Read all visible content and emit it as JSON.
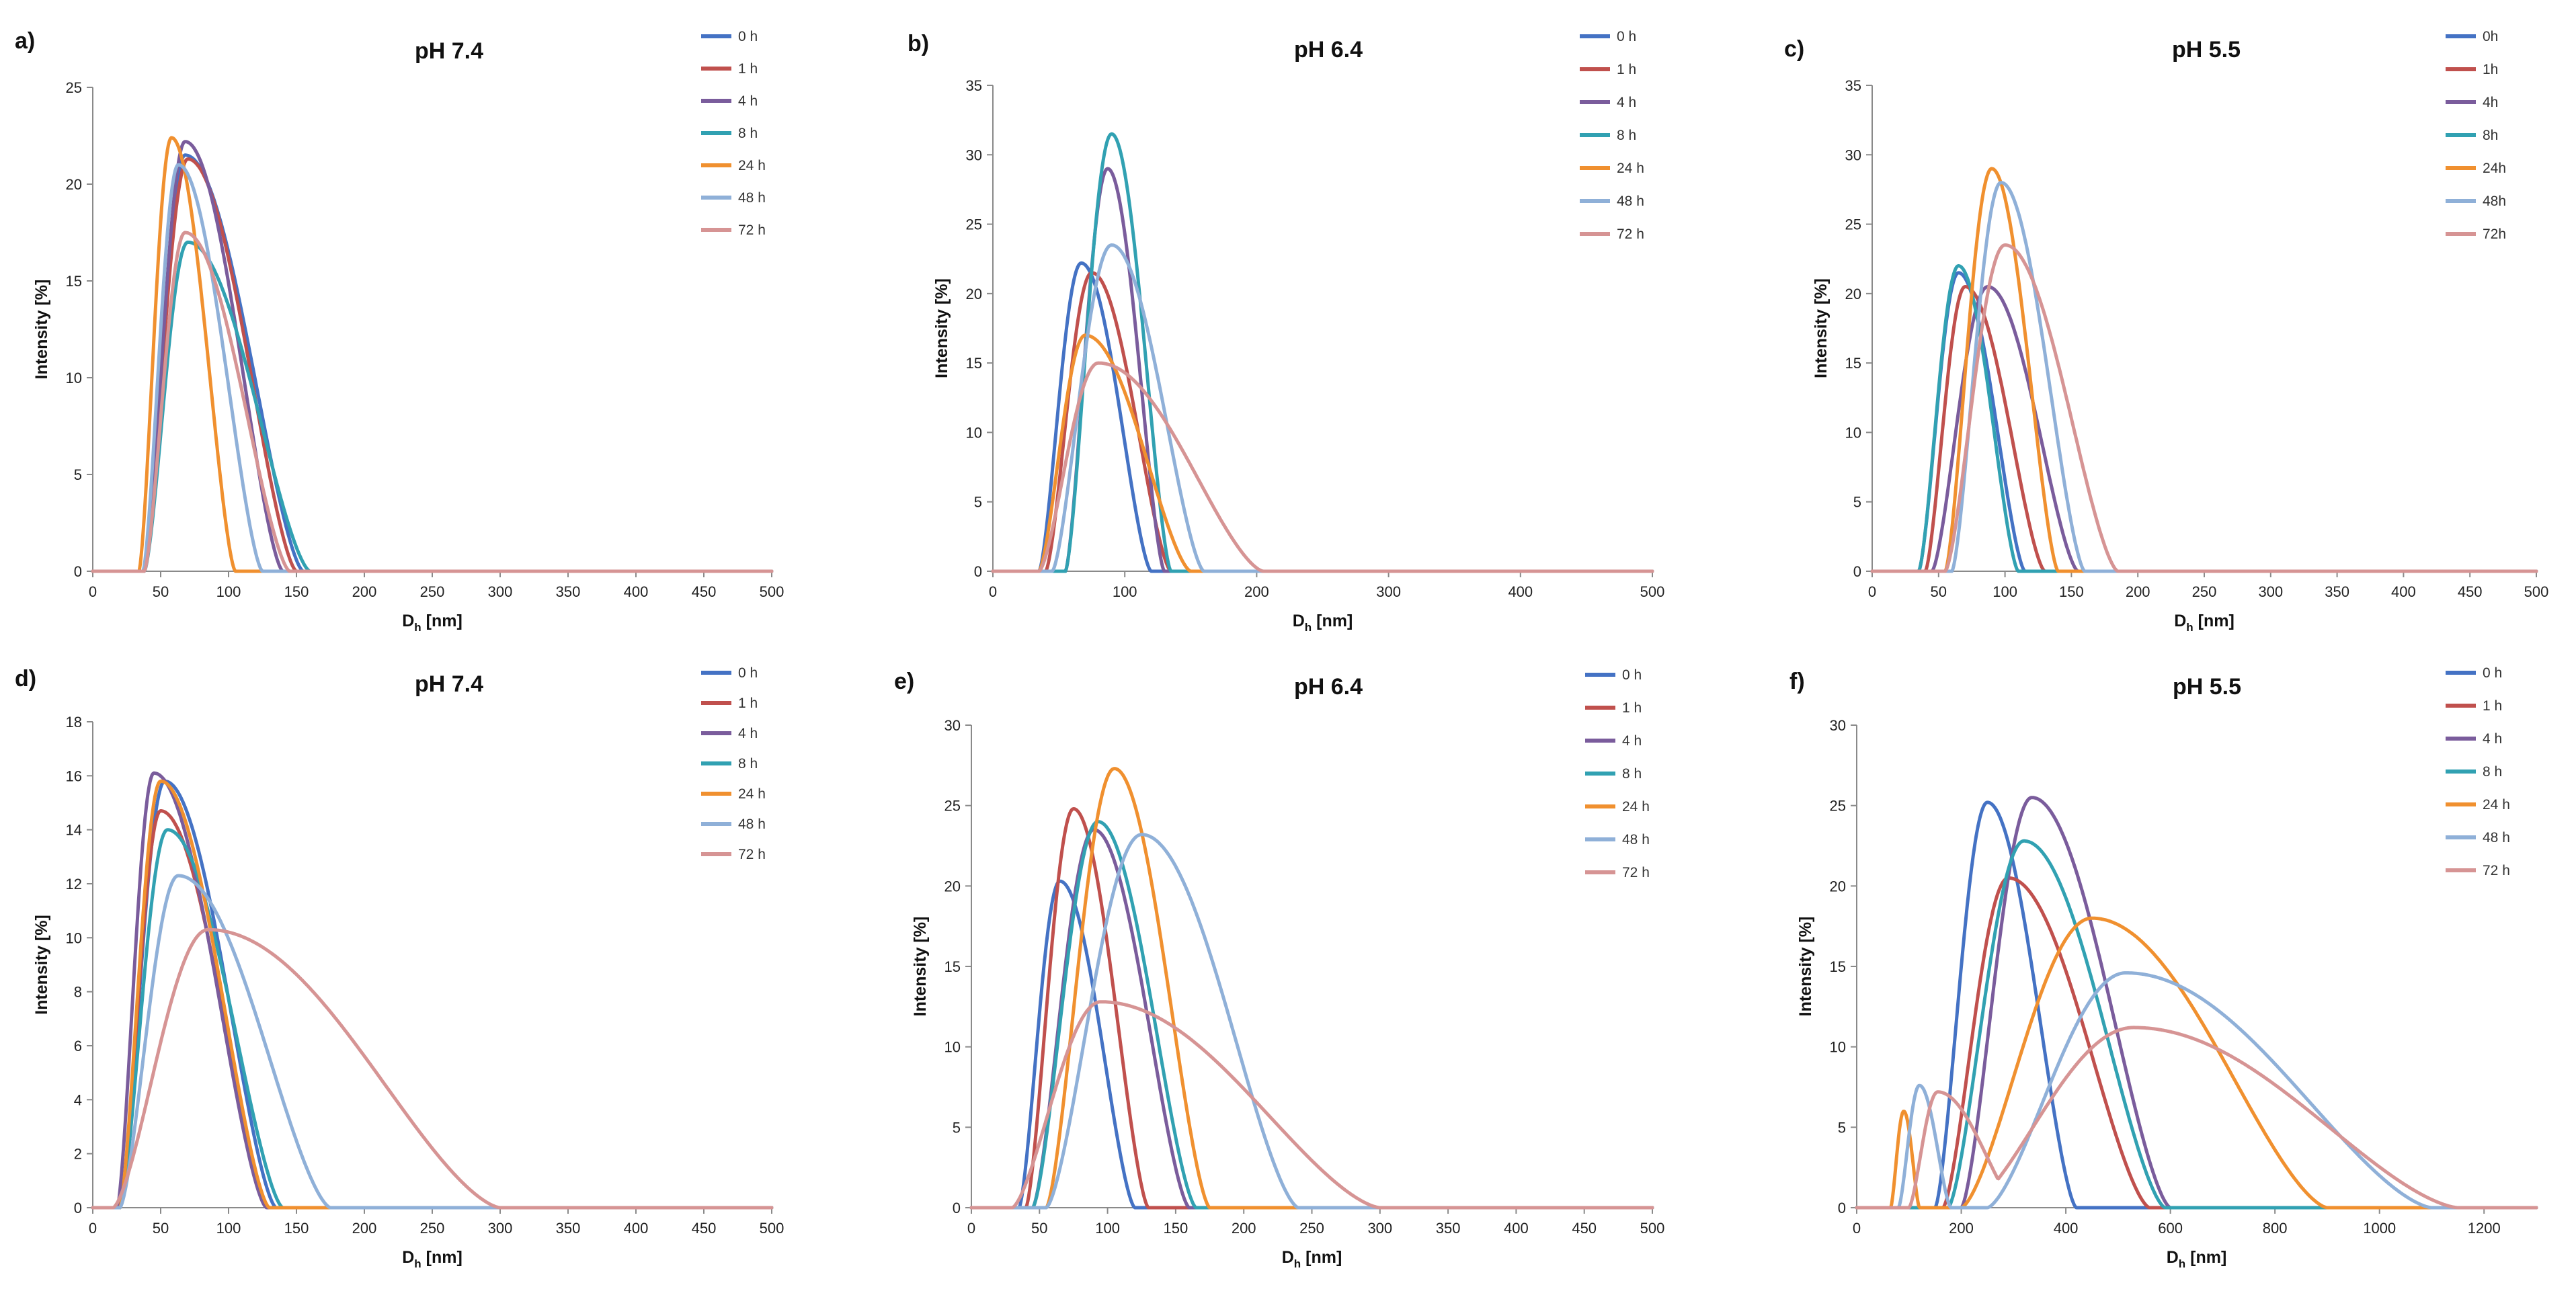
{
  "colors": {
    "blue": "#4472c4",
    "red": "#c0504d",
    "purple": "#7a5c9c",
    "teal": "#31a1b2",
    "orange": "#f0902f",
    "lightblue": "#8fb0d8",
    "pink": "#d69494"
  },
  "chart_data": [
    {
      "panel": "a)",
      "title": "pH 7.4",
      "type": "line",
      "xlabel_main": "D",
      "xlabel_sub": "h",
      "xlabel_unit": "[nm]",
      "ylabel": "Intensity [%]",
      "xlim": [
        0,
        500
      ],
      "ylim": [
        0,
        25
      ],
      "xticks": [
        "0",
        "50",
        "100",
        "150",
        "200",
        "250",
        "300",
        "350",
        "400",
        "450",
        "500"
      ],
      "yticks": [
        "0",
        "5",
        "10",
        "15",
        "20",
        "25"
      ],
      "series": [
        {
          "name": "0 h",
          "color": "#4472c4",
          "start": 37,
          "peak": 68,
          "height": 21.5,
          "end": 155
        },
        {
          "name": "1 h",
          "color": "#c0504d",
          "start": 37,
          "peak": 70,
          "height": 21.3,
          "end": 150
        },
        {
          "name": "4 h",
          "color": "#7a5c9c",
          "start": 38,
          "peak": 68,
          "height": 22.2,
          "end": 140
        },
        {
          "name": "8 h",
          "color": "#31a1b2",
          "start": 38,
          "peak": 70,
          "height": 17.0,
          "end": 160
        },
        {
          "name": "24 h",
          "color": "#f0902f",
          "start": 34,
          "peak": 58,
          "height": 22.4,
          "end": 105
        },
        {
          "name": "48 h",
          "color": "#8fb0d8",
          "start": 37,
          "peak": 63,
          "height": 21.0,
          "end": 125
        },
        {
          "name": "72 h",
          "color": "#d69494",
          "start": 38,
          "peak": 68,
          "height": 17.5,
          "end": 145
        }
      ]
    },
    {
      "panel": "b)",
      "title": "pH 6.4",
      "type": "line",
      "xlabel_main": "D",
      "xlabel_sub": "h",
      "xlabel_unit": "[nm]",
      "ylabel": "Intensity [%]",
      "xlim": [
        0,
        500
      ],
      "ylim": [
        0,
        35
      ],
      "xticks": [
        "0",
        "100",
        "200",
        "300",
        "400",
        "500"
      ],
      "yticks": [
        "0",
        "5",
        "10",
        "15",
        "20",
        "25",
        "30",
        "35"
      ],
      "series": [
        {
          "name": "0 h",
          "color": "#4472c4",
          "start": 35,
          "peak": 67,
          "height": 22.2,
          "end": 120
        },
        {
          "name": "1 h",
          "color": "#c0504d",
          "start": 40,
          "peak": 75,
          "height": 21.5,
          "end": 135
        },
        {
          "name": "4 h",
          "color": "#7a5c9c",
          "start": 55,
          "peak": 87,
          "height": 29.0,
          "end": 130
        },
        {
          "name": "8 h",
          "color": "#31a1b2",
          "start": 55,
          "peak": 90,
          "height": 31.5,
          "end": 135
        },
        {
          "name": "24 h",
          "color": "#f0902f",
          "start": 35,
          "peak": 70,
          "height": 17.0,
          "end": 150
        },
        {
          "name": "48 h",
          "color": "#8fb0d8",
          "start": 45,
          "peak": 90,
          "height": 23.5,
          "end": 160
        },
        {
          "name": "72 h",
          "color": "#d69494",
          "start": 35,
          "peak": 80,
          "height": 15.0,
          "end": 205
        }
      ]
    },
    {
      "panel": "c)",
      "title": "pH 5.5",
      "type": "line",
      "xlabel_main": "D",
      "xlabel_sub": "h",
      "xlabel_unit": "[nm]",
      "ylabel": "Intensity [%]",
      "xlim": [
        0,
        500
      ],
      "ylim": [
        0,
        35
      ],
      "xticks": [
        "0",
        "50",
        "100",
        "150",
        "200",
        "250",
        "300",
        "350",
        "400",
        "450",
        "500"
      ],
      "yticks": [
        "0",
        "5",
        "10",
        "15",
        "20",
        "25",
        "30",
        "35"
      ],
      "series": [
        {
          "name": "0h",
          "color": "#4472c4",
          "start": 35,
          "peak": 65,
          "height": 21.5,
          "end": 115
        },
        {
          "name": "1h",
          "color": "#c0504d",
          "start": 40,
          "peak": 70,
          "height": 20.5,
          "end": 130
        },
        {
          "name": "4h",
          "color": "#7a5c9c",
          "start": 45,
          "peak": 87,
          "height": 20.5,
          "end": 155
        },
        {
          "name": "8h",
          "color": "#31a1b2",
          "start": 35,
          "peak": 65,
          "height": 22.0,
          "end": 110
        },
        {
          "name": "24h",
          "color": "#f0902f",
          "start": 55,
          "peak": 90,
          "height": 29.0,
          "end": 140
        },
        {
          "name": "48h",
          "color": "#8fb0d8",
          "start": 60,
          "peak": 97,
          "height": 28.0,
          "end": 160
        },
        {
          "name": "72h",
          "color": "#d69494",
          "start": 55,
          "peak": 100,
          "height": 23.5,
          "end": 185
        }
      ]
    },
    {
      "panel": "d)",
      "title": "pH 7.4",
      "type": "line",
      "xlabel_main": "D",
      "xlabel_sub": "h",
      "xlabel_unit": "[nm]",
      "ylabel": "Intensity [%]",
      "xlim": [
        0,
        500
      ],
      "ylim": [
        0,
        18
      ],
      "xticks": [
        "0",
        "50",
        "100",
        "150",
        "200",
        "250",
        "300",
        "350",
        "400",
        "450",
        "500"
      ],
      "yticks": [
        "0",
        "2",
        "4",
        "6",
        "8",
        "10",
        "12",
        "14",
        "16",
        "18"
      ],
      "series": [
        {
          "name": "0 h",
          "color": "#4472c4",
          "start": 20,
          "peak": 53,
          "height": 15.8,
          "end": 135
        },
        {
          "name": "1 h",
          "color": "#c0504d",
          "start": 20,
          "peak": 50,
          "height": 14.7,
          "end": 130
        },
        {
          "name": "4 h",
          "color": "#7a5c9c",
          "start": 18,
          "peak": 45,
          "height": 16.1,
          "end": 128
        },
        {
          "name": "8 h",
          "color": "#31a1b2",
          "start": 20,
          "peak": 55,
          "height": 14.0,
          "end": 140
        },
        {
          "name": "24 h",
          "color": "#f0902f",
          "start": 20,
          "peak": 50,
          "height": 15.8,
          "end": 130
        },
        {
          "name": "48 h",
          "color": "#8fb0d8",
          "start": 20,
          "peak": 63,
          "height": 12.3,
          "end": 175
        },
        {
          "name": "72 h",
          "color": "#d69494",
          "start": 15,
          "peak": 85,
          "height": 10.3,
          "end": 300
        }
      ]
    },
    {
      "panel": "e)",
      "title": "pH 6.4",
      "type": "line",
      "xlabel_main": "D",
      "xlabel_sub": "h",
      "xlabel_unit": "[nm]",
      "ylabel": "Intensity [%]",
      "xlim": [
        0,
        500
      ],
      "ylim": [
        0,
        30
      ],
      "xticks": [
        "0",
        "50",
        "100",
        "150",
        "200",
        "250",
        "300",
        "350",
        "400",
        "450",
        "500"
      ],
      "yticks": [
        "0",
        "5",
        "10",
        "15",
        "20",
        "25",
        "30"
      ],
      "series": [
        {
          "name": "0 h",
          "color": "#4472c4",
          "start": 35,
          "peak": 65,
          "height": 20.3,
          "end": 120
        },
        {
          "name": "1 h",
          "color": "#c0504d",
          "start": 40,
          "peak": 75,
          "height": 24.8,
          "end": 130
        },
        {
          "name": "4 h",
          "color": "#7a5c9c",
          "start": 45,
          "peak": 90,
          "height": 23.5,
          "end": 160
        },
        {
          "name": "8 h",
          "color": "#31a1b2",
          "start": 45,
          "peak": 93,
          "height": 24.0,
          "end": 165
        },
        {
          "name": "24 h",
          "color": "#f0902f",
          "start": 55,
          "peak": 105,
          "height": 27.3,
          "end": 175
        },
        {
          "name": "48 h",
          "color": "#8fb0d8",
          "start": 55,
          "peak": 125,
          "height": 23.2,
          "end": 240
        },
        {
          "name": "72 h",
          "color": "#d69494",
          "start": 30,
          "peak": 95,
          "height": 12.8,
          "end": 300
        }
      ]
    },
    {
      "panel": "f)",
      "title": "pH 5.5",
      "type": "line",
      "xlabel_main": "D",
      "xlabel_sub": "h",
      "xlabel_unit": "[nm]",
      "ylabel": "Intensity [%]",
      "xlim": [
        0,
        1300
      ],
      "ylim": [
        0,
        30
      ],
      "xticks": [
        "0",
        "200",
        "400",
        "600",
        "800",
        "1000",
        "1200"
      ],
      "yticks": [
        "0",
        "5",
        "10",
        "15",
        "20",
        "25",
        "30"
      ],
      "series": [
        {
          "name": "0 h",
          "color": "#4472c4",
          "start": 150,
          "peak": 250,
          "height": 25.2,
          "end": 420
        },
        {
          "name": "1 h",
          "color": "#c0504d",
          "start": 165,
          "peak": 290,
          "height": 20.5,
          "end": 560
        },
        {
          "name": "4 h",
          "color": "#7a5c9c",
          "start": 200,
          "peak": 335,
          "height": 25.5,
          "end": 600
        },
        {
          "name": "8 h",
          "color": "#31a1b2",
          "start": 175,
          "peak": 320,
          "height": 22.8,
          "end": 590
        },
        {
          "name": "24 h",
          "color": "#f0902f",
          "start": 200,
          "peak": 450,
          "height": 18.0,
          "end": 900,
          "bump": {
            "start": 65,
            "peak": 90,
            "height": 6.0,
            "end": 120
          }
        },
        {
          "name": "48 h",
          "color": "#8fb0d8",
          "start": 250,
          "peak": 515,
          "height": 14.6,
          "end": 1100,
          "bump": {
            "start": 80,
            "peak": 120,
            "height": 7.6,
            "end": 180
          }
        },
        {
          "name": "72 h",
          "color": "#d69494",
          "start": 210,
          "peak": 530,
          "height": 11.2,
          "end": 1150,
          "bump": {
            "start": 100,
            "peak": 155,
            "height": 7.2,
            "end": 310
          }
        }
      ]
    }
  ]
}
